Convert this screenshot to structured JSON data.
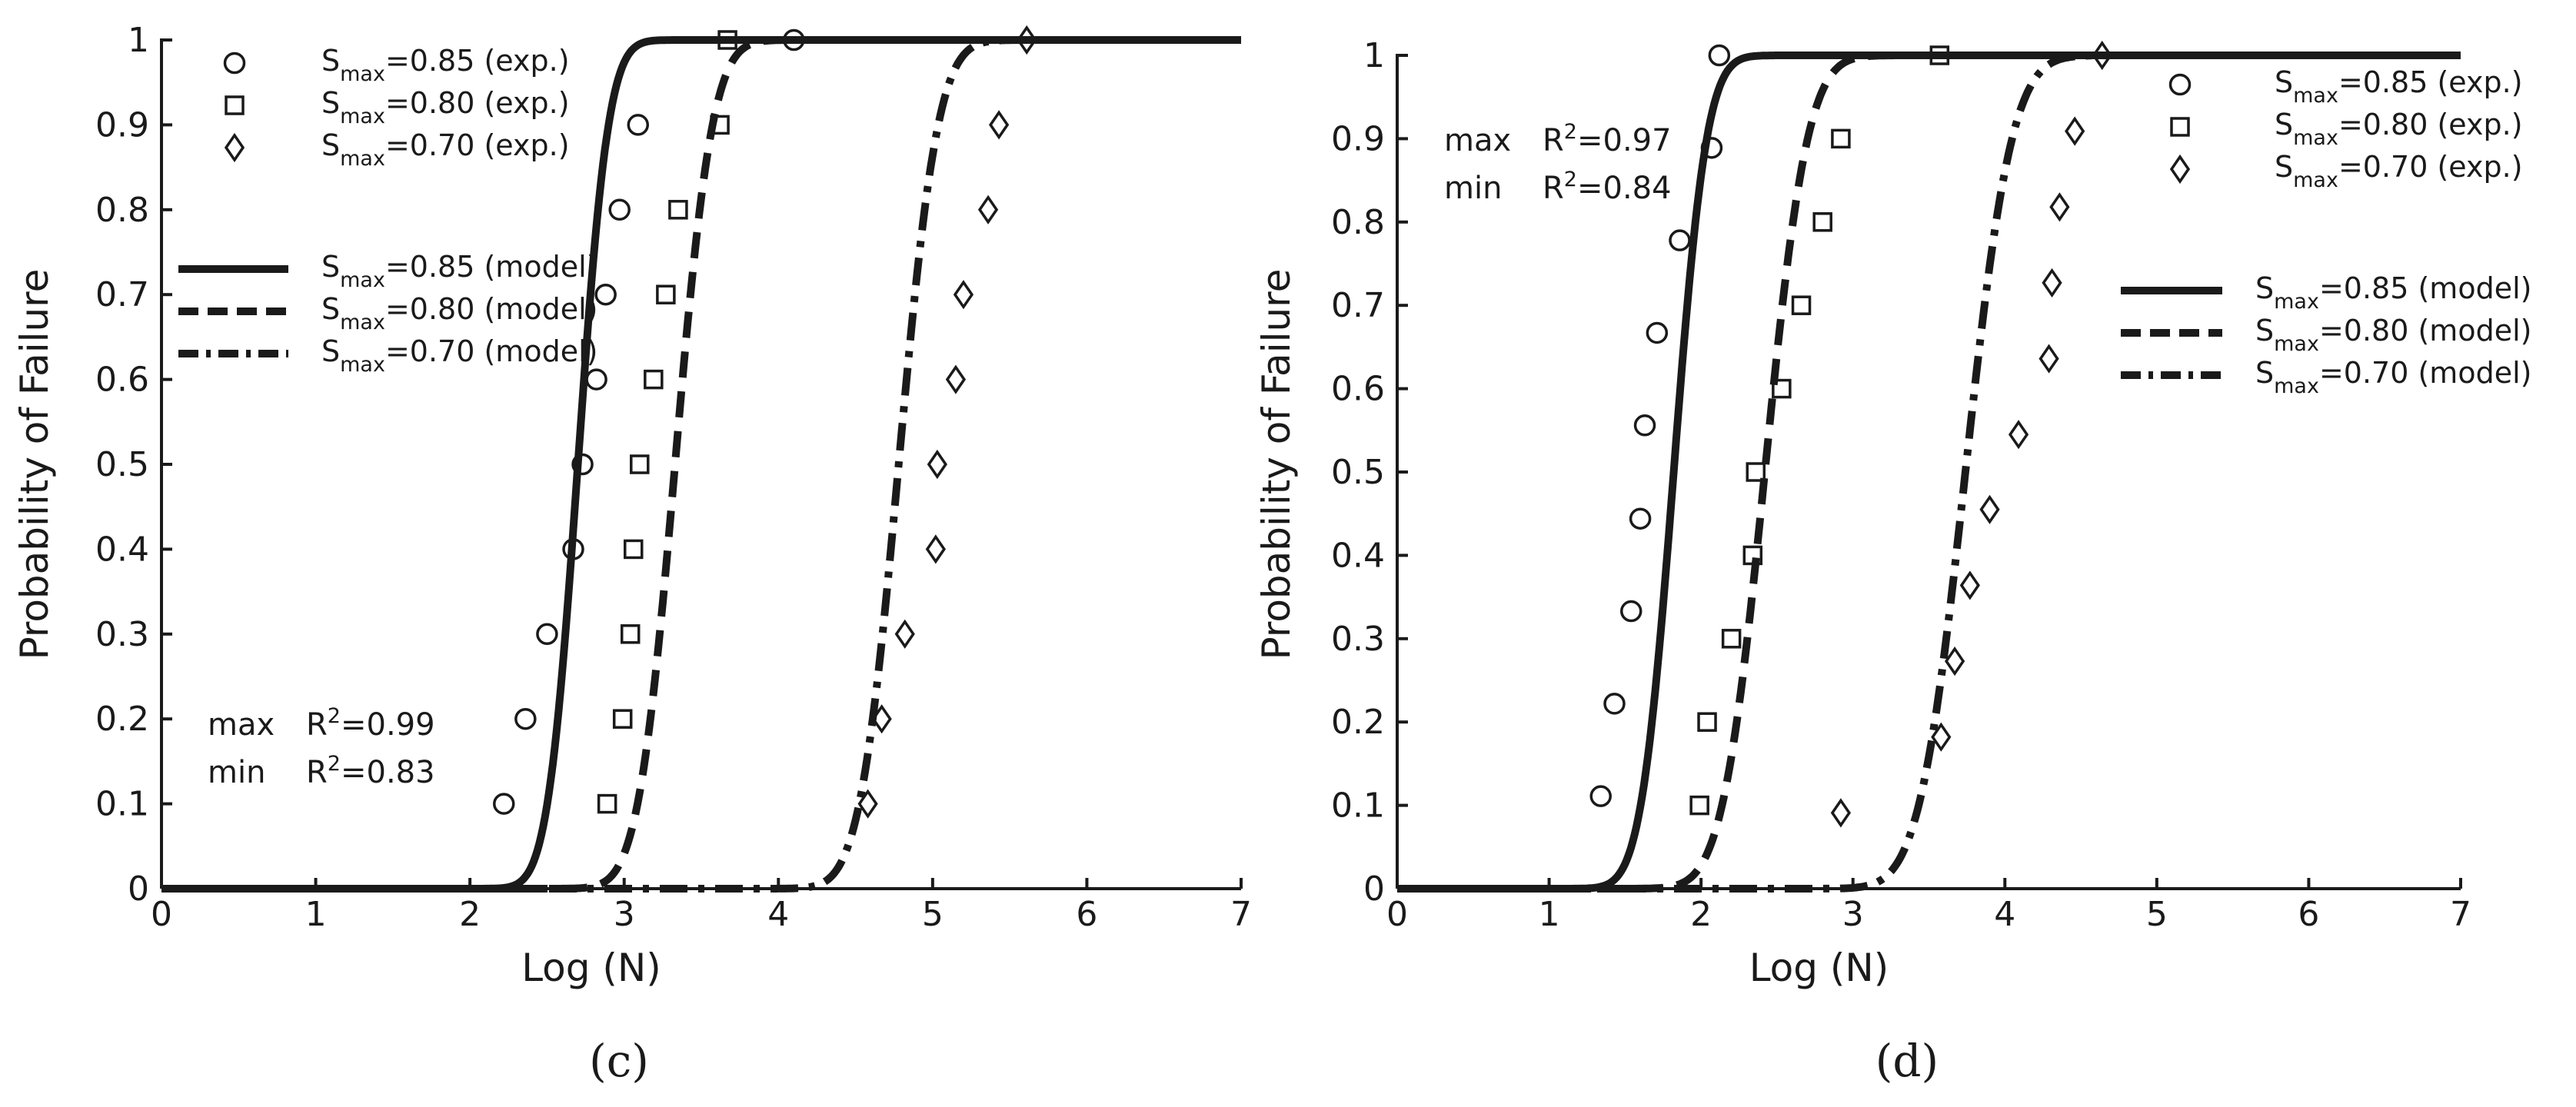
{
  "chart_data": [
    {
      "panel": "c",
      "type": "scatter",
      "xlabel": "Log (N)",
      "ylabel": "Probability of Failure",
      "xlim": [
        0,
        7
      ],
      "ylim": [
        0,
        1
      ],
      "xticks": [
        0,
        1,
        2,
        3,
        4,
        5,
        6,
        7
      ],
      "yticks": [
        0,
        0.1,
        0.2,
        0.3,
        0.4,
        0.5,
        0.6,
        0.7,
        0.8,
        0.9,
        1
      ],
      "ytick_labels": [
        "0",
        "0.1",
        "0.2",
        "0.3",
        "0.4",
        "0.5",
        "0.6",
        "0.7",
        "0.8",
        "0.9",
        "1"
      ],
      "legend_position": "top-left",
      "exp_series": [
        {
          "name": "S",
          "sub": "max",
          "tail": "=0.85 (exp.)",
          "marker": "circle",
          "x": [
            2.22,
            2.36,
            2.5,
            2.67,
            2.73,
            2.82,
            2.88,
            2.97,
            3.09,
            4.1
          ],
          "y": [
            0.1,
            0.2,
            0.3,
            0.4,
            0.5,
            0.6,
            0.7,
            0.8,
            0.9,
            1.0
          ]
        },
        {
          "name": "S",
          "sub": "max",
          "tail": "=0.80 (exp.)",
          "marker": "square",
          "x": [
            2.89,
            2.99,
            3.04,
            3.06,
            3.1,
            3.19,
            3.27,
            3.35,
            3.62,
            3.67
          ],
          "y": [
            0.1,
            0.2,
            0.3,
            0.4,
            0.5,
            0.6,
            0.7,
            0.8,
            0.9,
            1.0
          ]
        },
        {
          "name": "S",
          "sub": "max",
          "tail": "=0.70 (exp.)",
          "marker": "diamond",
          "x": [
            4.58,
            4.67,
            4.82,
            5.02,
            5.03,
            5.15,
            5.2,
            5.36,
            5.43,
            5.61
          ],
          "y": [
            0.1,
            0.2,
            0.3,
            0.4,
            0.5,
            0.6,
            0.7,
            0.8,
            0.9,
            1.0
          ]
        }
      ],
      "model_series": [
        {
          "name": "S",
          "sub": "max",
          "tail": "=0.85 (model)",
          "dash": "solid",
          "median": 2.7,
          "scale": 0.155
        },
        {
          "name": "S",
          "sub": "max",
          "tail": "=0.80 (model)",
          "dash": "dashed",
          "median": 3.33,
          "scale": 0.19
        },
        {
          "name": "S",
          "sub": "max",
          "tail": "=0.70 (model)",
          "dash": "dashdot",
          "median": 4.78,
          "scale": 0.2
        }
      ],
      "r2": {
        "max_label": "max",
        "max_value": "=0.99",
        "min_label": "min",
        "min_value": "=0.83",
        "position": "bottom-left"
      },
      "caption": "(c)"
    },
    {
      "panel": "d",
      "type": "scatter",
      "xlabel": "Log (N)",
      "ylabel": "Probability of Failure",
      "xlim": [
        0,
        7
      ],
      "ylim": [
        0,
        1
      ],
      "xticks": [
        0,
        1,
        2,
        3,
        4,
        5,
        6,
        7
      ],
      "yticks": [
        0,
        0.1,
        0.2,
        0.3,
        0.4,
        0.5,
        0.6,
        0.7,
        0.8,
        0.9,
        1
      ],
      "ytick_labels": [
        "0",
        "0.1",
        "0.2",
        "0.3",
        "0.4",
        "0.5",
        "0.6",
        "0.7",
        "0.8",
        "0.9",
        "1"
      ],
      "legend_position": "top-right",
      "exp_series": [
        {
          "name": "S",
          "sub": "max",
          "tail": "=0.85 (exp.)",
          "marker": "circle",
          "x": [
            1.34,
            1.43,
            1.54,
            1.6,
            1.63,
            1.71,
            1.86,
            2.07,
            2.12
          ],
          "y": [
            0.111,
            0.222,
            0.333,
            0.444,
            0.556,
            0.667,
            0.778,
            0.889,
            1.0
          ]
        },
        {
          "name": "S",
          "sub": "max",
          "tail": "=0.80 (exp.)",
          "marker": "square",
          "x": [
            1.99,
            2.04,
            2.2,
            2.34,
            2.36,
            2.53,
            2.66,
            2.8,
            2.92,
            3.57
          ],
          "y": [
            0.1,
            0.2,
            0.3,
            0.4,
            0.5,
            0.6,
            0.7,
            0.8,
            0.9,
            1.0
          ]
        },
        {
          "name": "S",
          "sub": "max",
          "tail": "=0.70 (exp.)",
          "marker": "diamond",
          "x": [
            2.92,
            3.58,
            3.67,
            3.77,
            3.9,
            4.09,
            4.29,
            4.31,
            4.36,
            4.46,
            4.64
          ],
          "y": [
            0.091,
            0.182,
            0.273,
            0.364,
            0.455,
            0.545,
            0.636,
            0.727,
            0.818,
            0.909,
            1.0
          ]
        }
      ],
      "model_series": [
        {
          "name": "S",
          "sub": "max",
          "tail": "=0.85 (model)",
          "dash": "solid",
          "median": 1.82,
          "scale": 0.17
        },
        {
          "name": "S",
          "sub": "max",
          "tail": "=0.80 (model)",
          "dash": "dashed",
          "median": 2.42,
          "scale": 0.22
        },
        {
          "name": "S",
          "sub": "max",
          "tail": "=0.70 (model)",
          "dash": "dashdot",
          "median": 3.74,
          "scale": 0.24
        }
      ],
      "r2": {
        "max_label": "max",
        "max_value": "=0.97",
        "min_label": "min",
        "min_value": "=0.84",
        "position": "top-left"
      },
      "caption": "(d)"
    }
  ]
}
